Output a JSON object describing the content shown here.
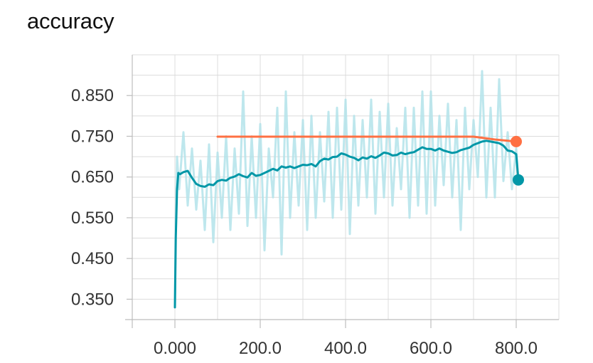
{
  "chart_data": {
    "type": "line",
    "title": "accuracy",
    "xlabel": "",
    "ylabel": "",
    "xlim": [
      -100,
      900
    ],
    "ylim": [
      0.3,
      0.95
    ],
    "x_ticks": [
      0,
      200,
      400,
      600,
      800
    ],
    "x_tick_labels": [
      "0.000",
      "200.0",
      "400.0",
      "600.0",
      "800.0"
    ],
    "y_ticks": [
      0.35,
      0.45,
      0.55,
      0.65,
      0.75,
      0.85
    ],
    "y_tick_labels": [
      "0.350",
      "0.450",
      "0.550",
      "0.650",
      "0.750",
      "0.850"
    ],
    "grid": true,
    "legend": "none",
    "series": [
      {
        "role": "train-raw",
        "color": "#b3e3ea",
        "x": [
          0,
          2,
          5,
          10,
          20,
          30,
          40,
          50,
          60,
          70,
          80,
          90,
          100,
          110,
          120,
          130,
          140,
          150,
          160,
          170,
          180,
          190,
          200,
          210,
          220,
          230,
          240,
          250,
          260,
          270,
          280,
          290,
          300,
          310,
          320,
          330,
          340,
          350,
          360,
          370,
          380,
          390,
          400,
          410,
          420,
          430,
          440,
          450,
          460,
          470,
          480,
          490,
          500,
          510,
          520,
          530,
          540,
          550,
          560,
          570,
          580,
          590,
          600,
          610,
          620,
          630,
          640,
          650,
          660,
          670,
          680,
          690,
          700,
          710,
          720,
          730,
          740,
          750,
          760,
          770,
          780,
          790,
          800,
          805
        ],
        "values": [
          0.33,
          0.55,
          0.7,
          0.62,
          0.76,
          0.58,
          0.72,
          0.57,
          0.69,
          0.52,
          0.73,
          0.49,
          0.71,
          0.55,
          0.75,
          0.52,
          0.72,
          0.56,
          0.86,
          0.53,
          0.75,
          0.55,
          0.78,
          0.47,
          0.72,
          0.6,
          0.82,
          0.46,
          0.86,
          0.55,
          0.76,
          0.58,
          0.79,
          0.52,
          0.8,
          0.55,
          0.76,
          0.59,
          0.81,
          0.55,
          0.82,
          0.57,
          0.84,
          0.51,
          0.8,
          0.58,
          0.79,
          0.6,
          0.84,
          0.56,
          0.81,
          0.6,
          0.83,
          0.58,
          0.77,
          0.62,
          0.82,
          0.55,
          0.82,
          0.58,
          0.86,
          0.56,
          0.86,
          0.58,
          0.8,
          0.63,
          0.83,
          0.6,
          0.79,
          0.52,
          0.82,
          0.62,
          0.79,
          0.65,
          0.91,
          0.6,
          0.82,
          0.6,
          0.89,
          0.64,
          0.76,
          0.62,
          0.72,
          0.64
        ]
      },
      {
        "role": "train-smoothed",
        "color": "#0097a7",
        "x": [
          0,
          2,
          5,
          8,
          12,
          20,
          30,
          40,
          50,
          60,
          70,
          80,
          90,
          100,
          110,
          120,
          130,
          140,
          150,
          160,
          170,
          180,
          190,
          200,
          210,
          220,
          230,
          240,
          250,
          260,
          270,
          280,
          290,
          300,
          310,
          320,
          330,
          340,
          350,
          360,
          370,
          380,
          390,
          400,
          410,
          420,
          430,
          440,
          450,
          460,
          470,
          480,
          490,
          500,
          510,
          520,
          530,
          540,
          550,
          560,
          570,
          580,
          590,
          600,
          610,
          620,
          630,
          640,
          650,
          660,
          670,
          680,
          690,
          700,
          710,
          720,
          730,
          740,
          750,
          760,
          770,
          780,
          790,
          800,
          805
        ],
        "values": [
          0.33,
          0.5,
          0.62,
          0.66,
          0.657,
          0.662,
          0.665,
          0.648,
          0.633,
          0.628,
          0.626,
          0.632,
          0.63,
          0.64,
          0.643,
          0.641,
          0.648,
          0.651,
          0.657,
          0.652,
          0.649,
          0.66,
          0.653,
          0.655,
          0.66,
          0.665,
          0.67,
          0.666,
          0.676,
          0.673,
          0.676,
          0.672,
          0.676,
          0.68,
          0.679,
          0.682,
          0.676,
          0.689,
          0.695,
          0.693,
          0.699,
          0.7,
          0.708,
          0.705,
          0.7,
          0.697,
          0.691,
          0.698,
          0.695,
          0.701,
          0.697,
          0.703,
          0.71,
          0.708,
          0.703,
          0.704,
          0.71,
          0.706,
          0.709,
          0.711,
          0.717,
          0.723,
          0.719,
          0.719,
          0.715,
          0.72,
          0.715,
          0.712,
          0.709,
          0.711,
          0.716,
          0.719,
          0.722,
          0.729,
          0.733,
          0.737,
          0.739,
          0.737,
          0.735,
          0.733,
          0.727,
          0.715,
          0.713,
          0.706,
          0.643
        ]
      },
      {
        "role": "eval",
        "color": "#ff7043",
        "x": [
          100,
          200,
          300,
          400,
          500,
          600,
          700,
          750,
          800
        ],
        "values": [
          0.749,
          0.749,
          0.749,
          0.749,
          0.749,
          0.749,
          0.749,
          0.742,
          0.737
        ]
      }
    ],
    "end_markers": [
      {
        "color": "#ff7043",
        "x": 800,
        "y": 0.737
      },
      {
        "color": "#0097a7",
        "x": 805,
        "y": 0.643
      }
    ]
  }
}
